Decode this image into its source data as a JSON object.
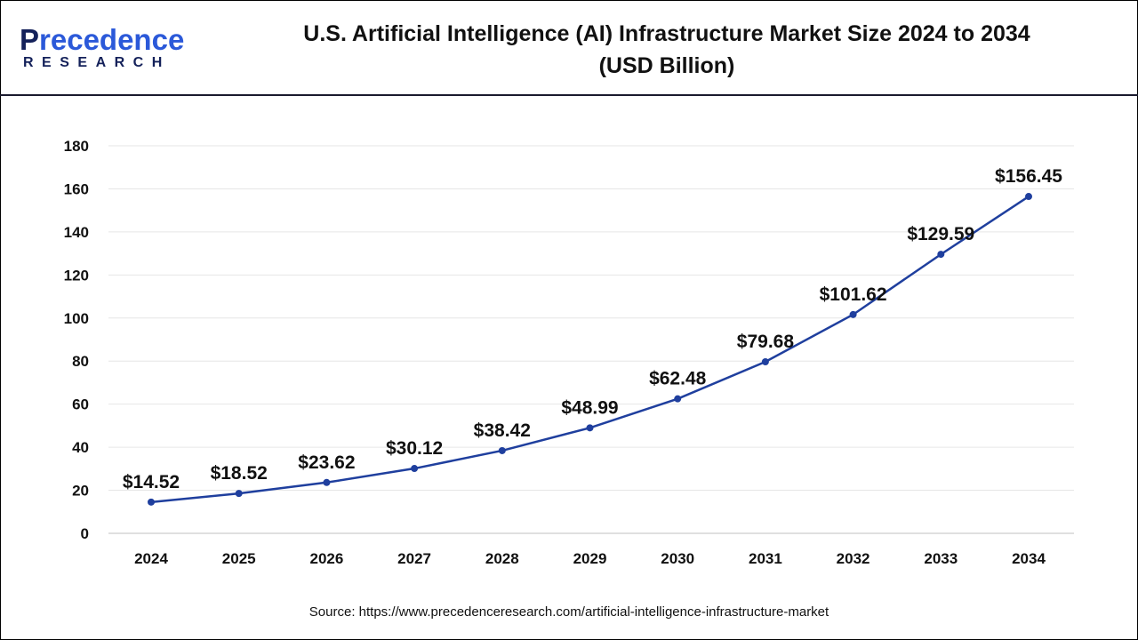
{
  "header": {
    "logo_text": "Precedence",
    "logo_subtext": "RESEARCH",
    "title_line1": "U.S. Artificial Intelligence (AI) Infrastructure Market Size 2024 to 2034",
    "title_line2": "(USD Billion)"
  },
  "source": "Source: https://www.precedenceresearch.com/artificial-intelligence-infrastructure-market",
  "colors": {
    "line": "#1f3f9e",
    "grid": "#e6e6e6",
    "brand_dark": "#14215a",
    "brand_blue": "#2b59d9"
  },
  "chart_data": {
    "type": "line",
    "title": "U.S. Artificial Intelligence (AI) Infrastructure Market Size 2024 to 2034 (USD Billion)",
    "categories": [
      "2024",
      "2025",
      "2026",
      "2027",
      "2028",
      "2029",
      "2030",
      "2031",
      "2032",
      "2033",
      "2034"
    ],
    "values": [
      14.52,
      18.52,
      23.62,
      30.12,
      38.42,
      48.99,
      62.48,
      79.68,
      101.62,
      129.59,
      156.45
    ],
    "data_labels": [
      "$14.52",
      "$18.52",
      "$23.62",
      "$30.12",
      "$38.42",
      "$48.99",
      "$62.48",
      "$79.68",
      "$101.62",
      "$129.59",
      "$156.45"
    ],
    "ylim": [
      0,
      180
    ],
    "yticks": [
      0,
      20,
      40,
      60,
      80,
      100,
      120,
      140,
      160,
      180
    ],
    "grid": true,
    "legend": "none"
  }
}
